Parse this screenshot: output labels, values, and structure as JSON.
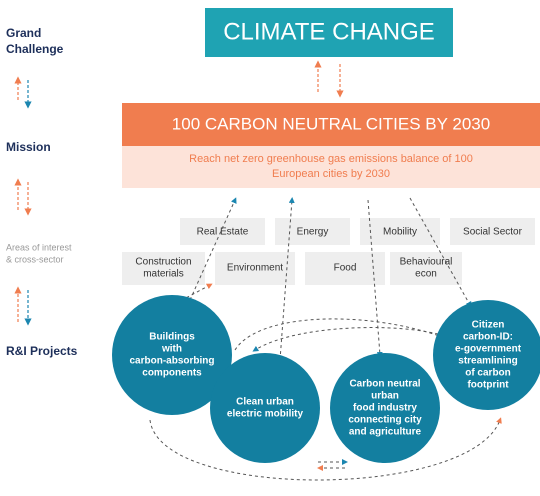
{
  "levels": {
    "grand_challenge": [
      "Grand",
      "Challenge"
    ],
    "mission": "Mission",
    "areas": [
      "Areas of interest",
      "& cross-sector"
    ],
    "projects": "R&I Projects"
  },
  "challenge": "CLIMATE CHANGE",
  "mission": {
    "title": "100 CARBON NEUTRAL CITIES BY 2030",
    "description": [
      "Reach net zero greenhouse gas emissions balance of 100",
      "European cities by 2030"
    ]
  },
  "areas": {
    "row1": [
      "Real Estate",
      "Energy",
      "Mobility",
      "Social Sector"
    ],
    "row2": [
      [
        "Construction",
        "materials"
      ],
      [
        "Environment"
      ],
      [
        "Food"
      ],
      [
        "Behavioural",
        "econ"
      ]
    ]
  },
  "projects": [
    [
      "Buildings",
      "with",
      "carbon-absorbing",
      "components"
    ],
    [
      "Clean urban",
      "electric mobility"
    ],
    [
      "Carbon neutral",
      "urban",
      "food industry",
      "connecting city",
      "and  agriculture"
    ],
    [
      "Citizen",
      "carbon-ID:",
      "e-government",
      "streamlining",
      "of carbon",
      "footprint"
    ]
  ]
}
